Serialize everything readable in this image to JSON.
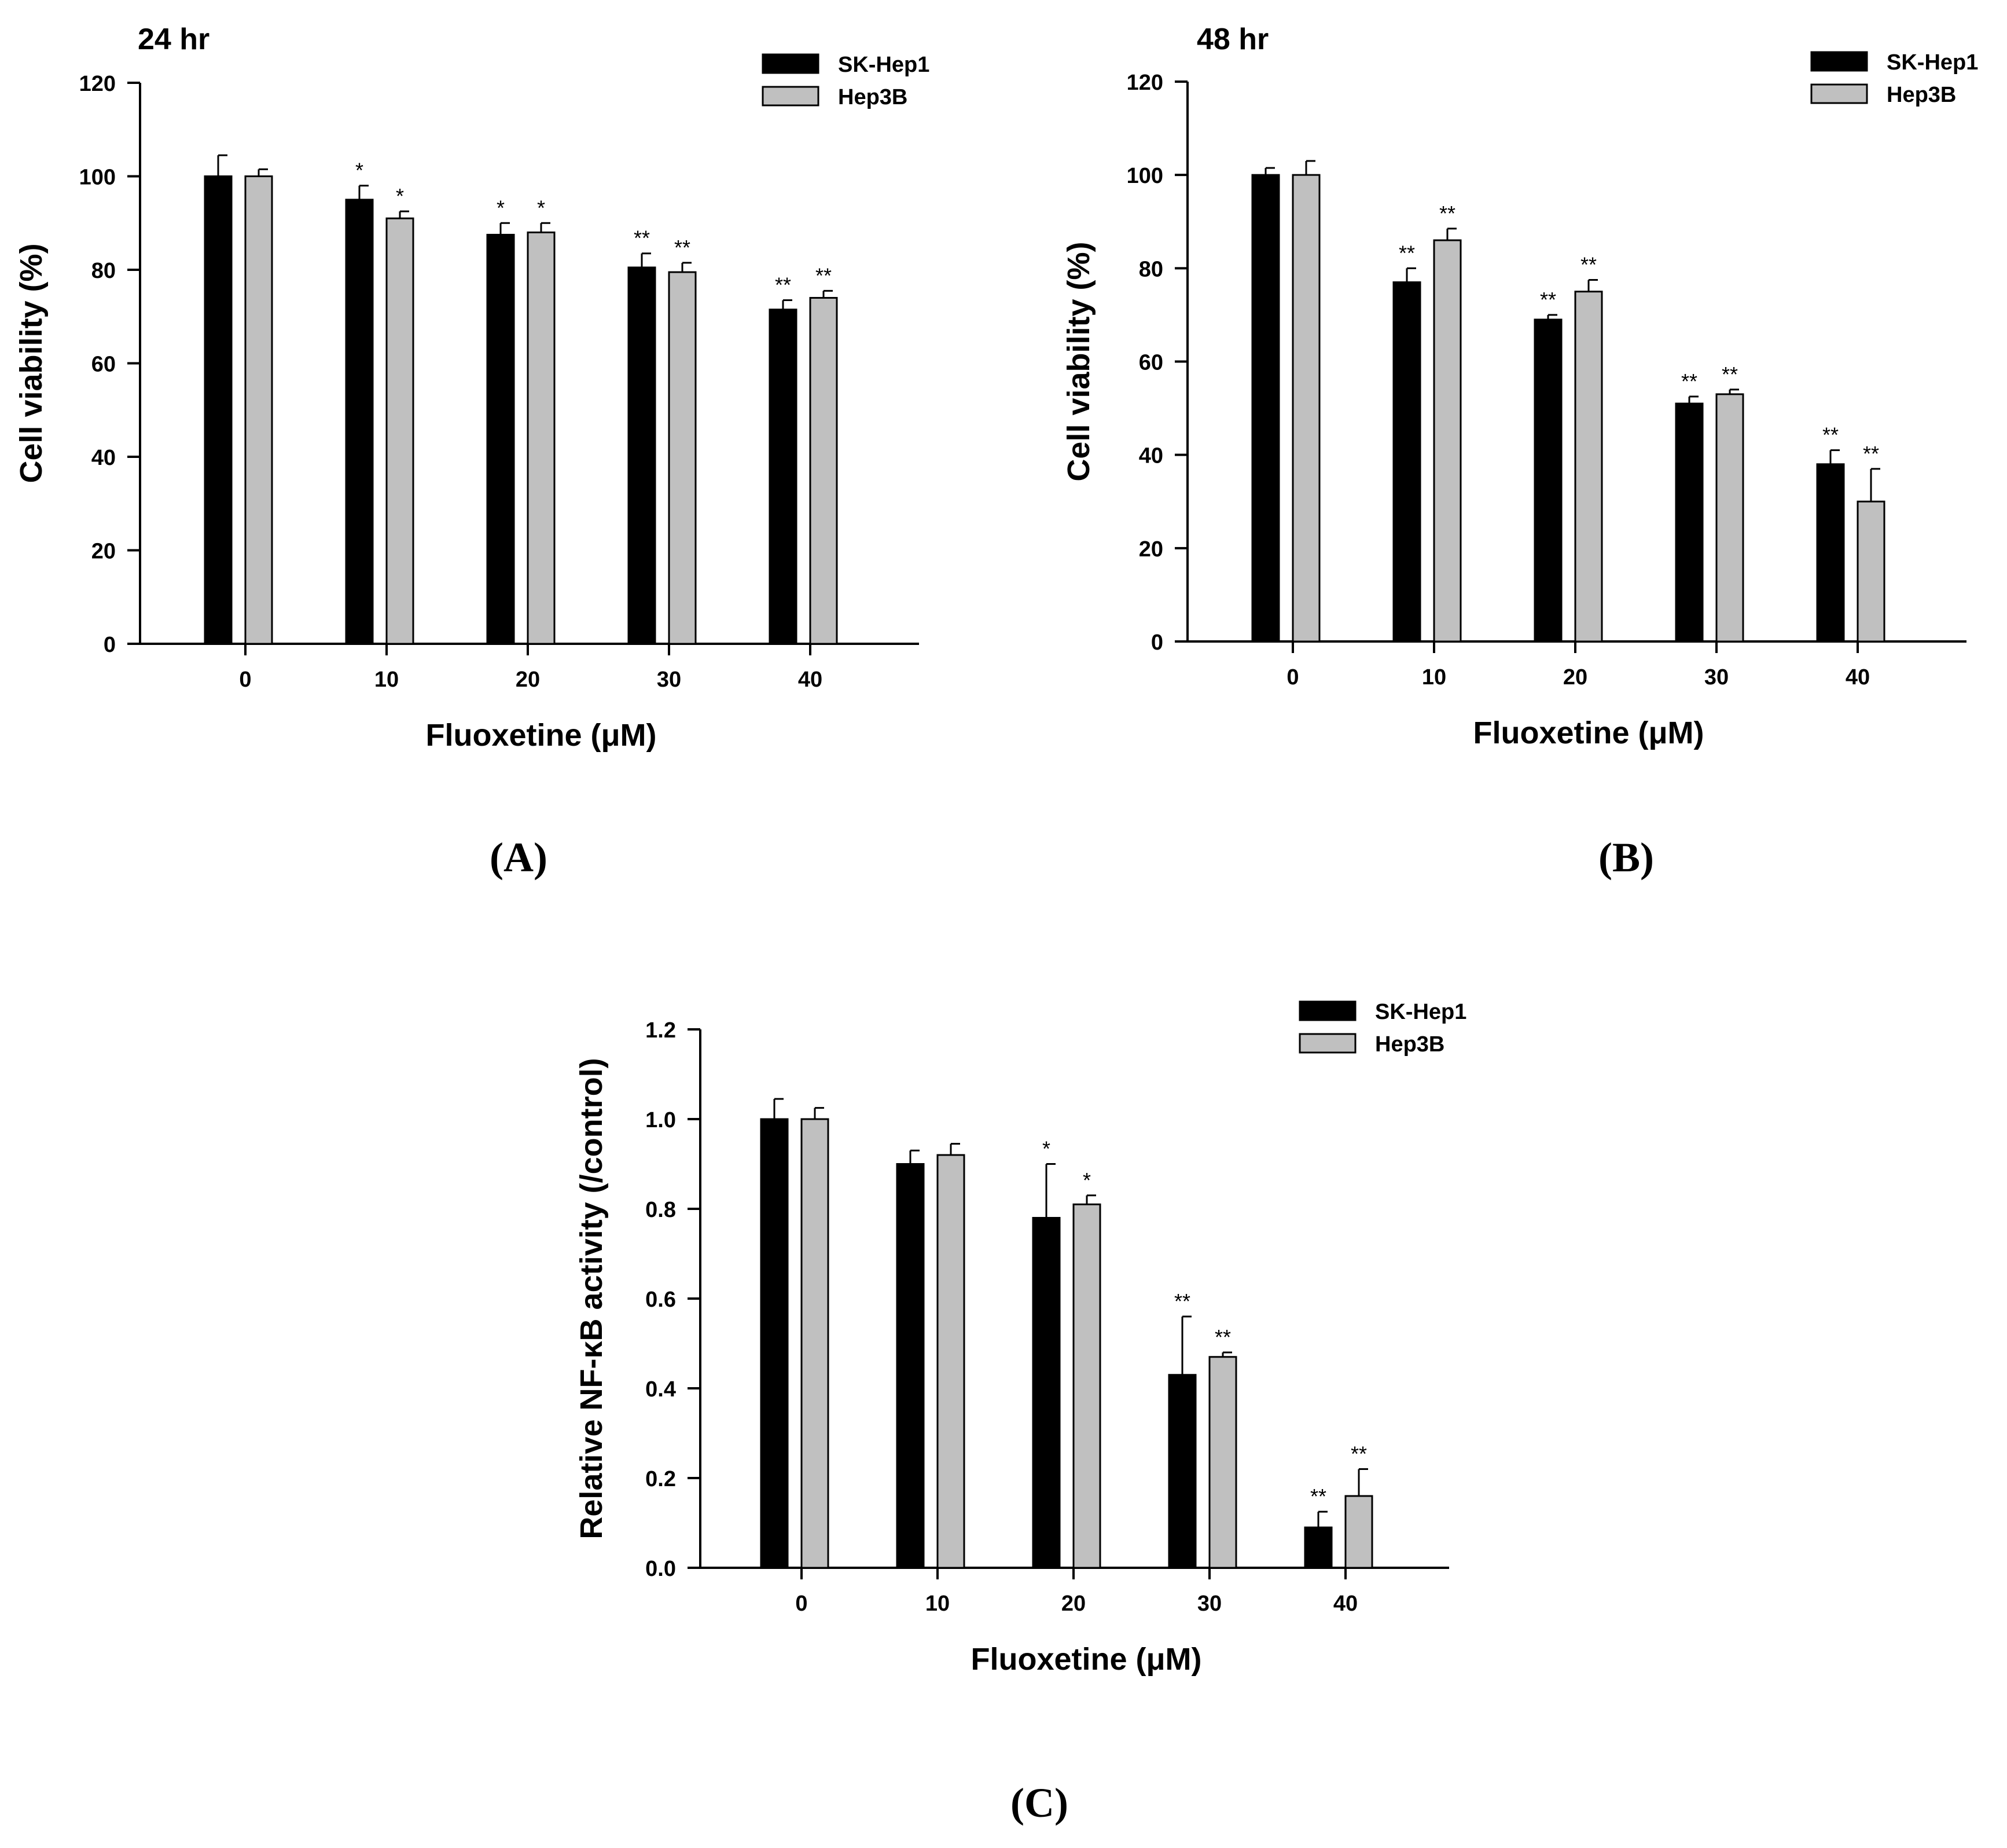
{
  "colors": {
    "sk": "#000000",
    "hep": "#c0c0c0",
    "axis": "#000000"
  },
  "panel_labels": [
    "(A)",
    "(B)",
    "(C)"
  ],
  "chart_data": [
    {
      "id": "A",
      "type": "bar",
      "title": "24 hr",
      "xlabel": "Fluoxetine (μM)",
      "ylabel": "Cell viability (%)",
      "ylim": [
        0,
        120
      ],
      "yticks": [
        0,
        20,
        40,
        60,
        80,
        100,
        120
      ],
      "tick_labels": [
        "0",
        "20",
        "40",
        "60",
        "80",
        "100",
        "120"
      ],
      "categories": [
        "0",
        "10",
        "20",
        "30",
        "40"
      ],
      "legend": [
        "SK-Hep1",
        "Hep3B"
      ],
      "series": [
        {
          "name": "SK-Hep1",
          "values": [
            100,
            95,
            87.5,
            80.5,
            71.5
          ],
          "errors": [
            4.5,
            3,
            2.5,
            3,
            2
          ],
          "marks": [
            "",
            "*",
            "*",
            "**",
            "**"
          ]
        },
        {
          "name": "Hep3B",
          "values": [
            100,
            91,
            88,
            79.5,
            74
          ],
          "errors": [
            1.5,
            1.5,
            2,
            2,
            1.5
          ],
          "marks": [
            "",
            "*",
            "*",
            "**",
            "**"
          ]
        }
      ]
    },
    {
      "id": "B",
      "type": "bar",
      "title": "48 hr",
      "xlabel": "Fluoxetine (μM)",
      "ylabel": "Cell viability (%)",
      "ylim": [
        0,
        120
      ],
      "yticks": [
        0,
        20,
        40,
        60,
        80,
        100,
        120
      ],
      "tick_labels": [
        "0",
        "20",
        "40",
        "60",
        "80",
        "100",
        "120"
      ],
      "categories": [
        "0",
        "10",
        "20",
        "30",
        "40"
      ],
      "legend": [
        "SK-Hep1",
        "Hep3B"
      ],
      "series": [
        {
          "name": "SK-Hep1",
          "values": [
            100,
            77,
            69,
            51,
            38
          ],
          "errors": [
            1.5,
            3,
            1,
            1.5,
            3
          ],
          "marks": [
            "",
            "**",
            "**",
            "**",
            "**"
          ]
        },
        {
          "name": "Hep3B",
          "values": [
            100,
            86,
            75,
            53,
            30
          ],
          "errors": [
            3,
            2.5,
            2.5,
            1,
            7
          ],
          "marks": [
            "",
            "**",
            "**",
            "**",
            "**"
          ]
        }
      ]
    },
    {
      "id": "C",
      "type": "bar",
      "title": "",
      "xlabel": "Fluoxetine (μM)",
      "ylabel": "Relative NF-κB activity (/control)",
      "ylim": [
        0,
        1.2
      ],
      "yticks": [
        0,
        0.2,
        0.4,
        0.6,
        0.8,
        1.0,
        1.2
      ],
      "tick_labels": [
        "0.0",
        "0.2",
        "0.4",
        "0.6",
        "0.8",
        "1.0",
        "1.2"
      ],
      "categories": [
        "0",
        "10",
        "20",
        "30",
        "40"
      ],
      "legend": [
        "SK-Hep1",
        "Hep3B"
      ],
      "series": [
        {
          "name": "SK-Hep1",
          "values": [
            1.0,
            0.9,
            0.78,
            0.43,
            0.09
          ],
          "errors": [
            0.045,
            0.03,
            0.12,
            0.13,
            0.035
          ],
          "marks": [
            "",
            "",
            "*",
            "**",
            "**"
          ]
        },
        {
          "name": "Hep3B",
          "values": [
            1.0,
            0.92,
            0.81,
            0.47,
            0.16
          ],
          "errors": [
            0.025,
            0.025,
            0.02,
            0.01,
            0.06
          ],
          "marks": [
            "",
            "",
            "*",
            "**",
            "**"
          ]
        }
      ]
    }
  ]
}
